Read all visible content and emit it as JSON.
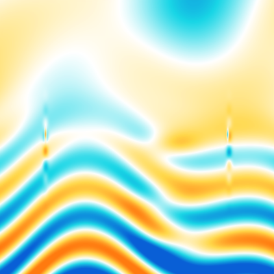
{
  "image": {
    "kind": "diverging-colormap-field",
    "description_visible_text": "",
    "colormap": {
      "negative_strong": "#0a5fd6",
      "negative_mid": "#19d6e6",
      "neutral": "#ffffff",
      "positive_mid": "#ffd84a",
      "positive_strong": "#ff7a10"
    }
  }
}
